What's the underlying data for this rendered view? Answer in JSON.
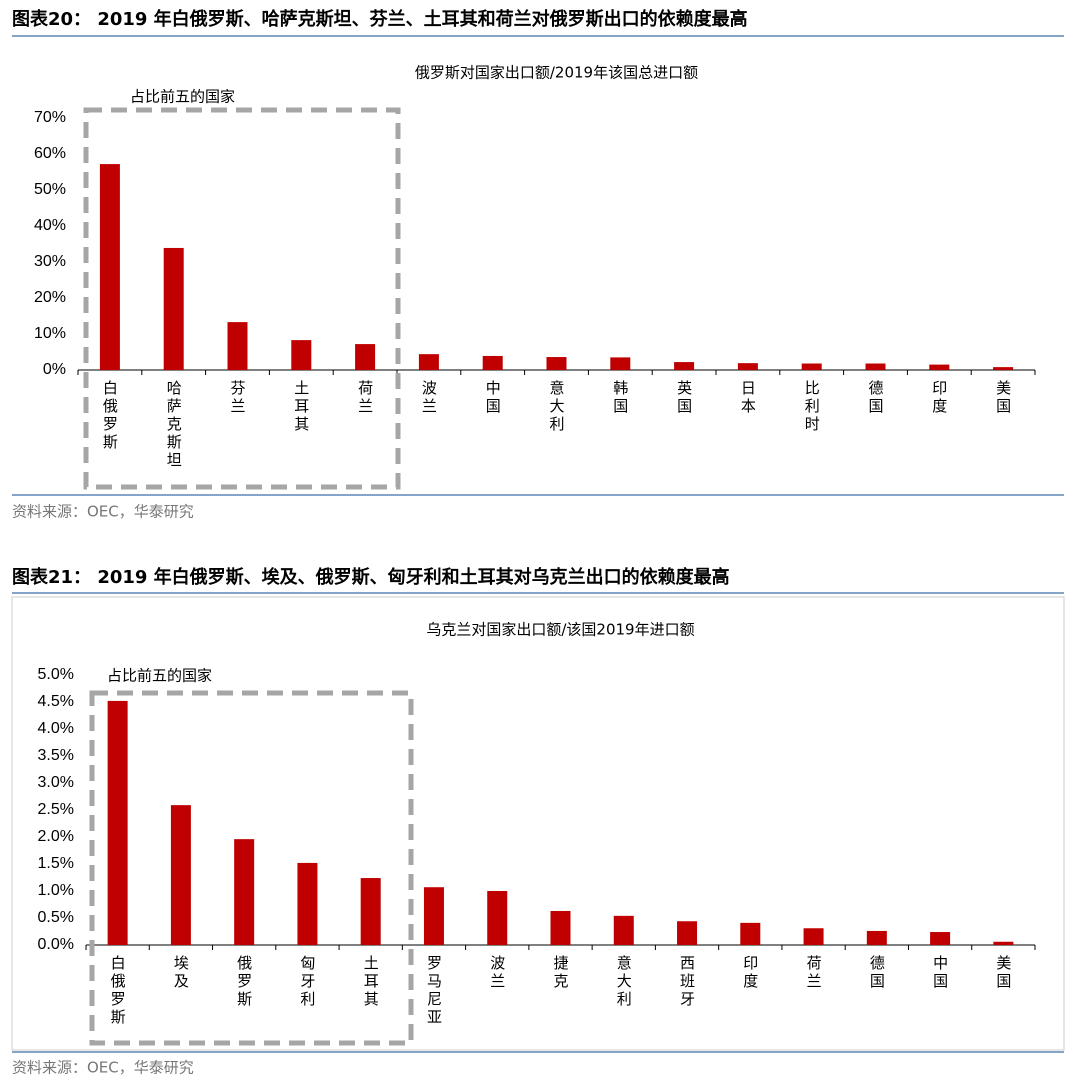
{
  "chart_data": [
    {
      "type": "bar",
      "title": "图表20：  2019 年白俄罗斯、哈萨克斯坦、芬兰、土耳其和荷兰对俄罗斯出口的依赖度最高",
      "subtitle": "俄罗斯对国家出口额/2019年该国总进口额",
      "annotation": "占比前五的国家",
      "source": "资料来源：OEC，华泰研究",
      "categories": [
        "白俄罗斯",
        "哈萨克斯坦",
        "芬兰",
        "土耳其",
        "荷兰",
        "波兰",
        "中国",
        "意大利",
        "韩国",
        "英国",
        "日本",
        "比利时",
        "德国",
        "印度",
        "美国"
      ],
      "values": [
        57.2,
        33.9,
        13.3,
        8.3,
        7.2,
        4.4,
        3.9,
        3.6,
        3.5,
        2.2,
        1.9,
        1.8,
        1.8,
        1.5,
        0.8
      ],
      "color": "#c00000",
      "ylim": [
        0,
        70
      ],
      "yticks": [
        {
          "value": 0,
          "label": "0%"
        },
        {
          "value": 10,
          "label": "10%"
        },
        {
          "value": 20,
          "label": "20%"
        },
        {
          "value": 30,
          "label": "30%"
        },
        {
          "value": 40,
          "label": "40%"
        },
        {
          "value": 50,
          "label": "50%"
        },
        {
          "value": 60,
          "label": "60%"
        },
        {
          "value": 70,
          "label": "70%"
        }
      ],
      "grid": false
    },
    {
      "type": "bar",
      "title": "图表21：  2019 年白俄罗斯、埃及、俄罗斯、匈牙利和土耳其对乌克兰出口的依赖度最高",
      "subtitle": "乌克兰对国家出口额/该国2019年进口额",
      "annotation": "占比前五的国家",
      "source": "资料来源：OEC，华泰研究",
      "categories": [
        "白俄罗斯",
        "埃及",
        "俄罗斯",
        "匈牙利",
        "土耳其",
        "罗马尼亚",
        "波兰",
        "捷克",
        "意大利",
        "西班牙",
        "印度",
        "荷兰",
        "德国",
        "中国",
        "美国"
      ],
      "values": [
        4.52,
        2.59,
        1.96,
        1.52,
        1.24,
        1.07,
        1.0,
        0.63,
        0.54,
        0.44,
        0.41,
        0.31,
        0.26,
        0.24,
        0.06
      ],
      "color": "#c00000",
      "ylim": [
        0,
        5
      ],
      "yticks": [
        {
          "value": 0,
          "label": "0.0%"
        },
        {
          "value": 0.5,
          "label": "0.5%"
        },
        {
          "value": 1,
          "label": "1.0%"
        },
        {
          "value": 1.5,
          "label": "1.5%"
        },
        {
          "value": 2,
          "label": "2.0%"
        },
        {
          "value": 2.5,
          "label": "2.5%"
        },
        {
          "value": 3,
          "label": "3.0%"
        },
        {
          "value": 3.5,
          "label": "3.5%"
        },
        {
          "value": 4,
          "label": "4.0%"
        },
        {
          "value": 4.5,
          "label": "4.5%"
        },
        {
          "value": 5,
          "label": "5.0%"
        }
      ],
      "grid": false
    }
  ]
}
